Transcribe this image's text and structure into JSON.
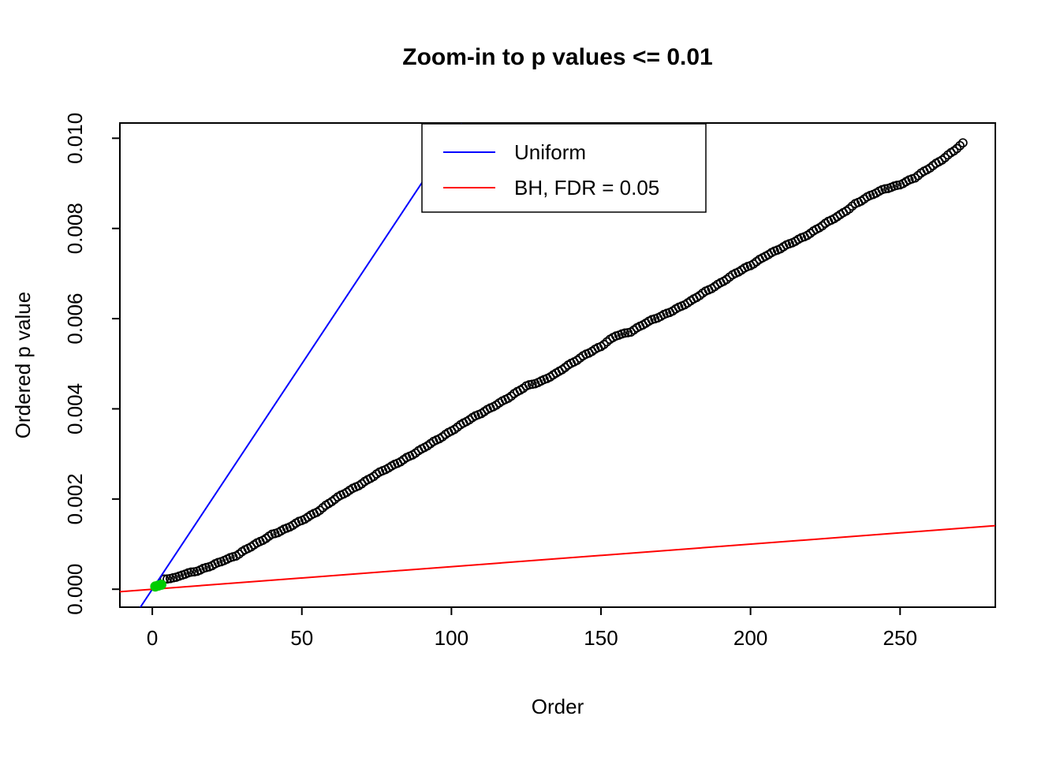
{
  "page": {
    "background": "#ffffff"
  },
  "chart_data": {
    "type": "scatter",
    "title": "Zoom-in to p values <= 0.01",
    "xlabel": "Order",
    "ylabel": "Ordered p value",
    "x_ticks": [
      0,
      50,
      100,
      150,
      200,
      250
    ],
    "y_ticks": [
      0.0,
      0.002,
      0.004,
      0.006,
      0.008,
      0.01
    ],
    "y_tick_labels": [
      "0.000",
      "0.002",
      "0.004",
      "0.006",
      "0.008",
      "0.010"
    ],
    "axes": {
      "usr_x": [
        -10.84,
        281.84
      ],
      "usr_y": [
        -0.000398,
        0.010338
      ],
      "xlim": [
        0,
        271
      ],
      "ylim": [
        0,
        0.00994
      ],
      "grid": false
    },
    "legend": {
      "position": "top-center",
      "entries": [
        {
          "label": "Uniform",
          "color": "#0000FF",
          "type": "line"
        },
        {
          "label": "BH, FDR = 0.05",
          "color": "#FF0000",
          "type": "line"
        }
      ]
    },
    "lines": [
      {
        "name": "uniform-line",
        "slope": 0.0001,
        "intercept": 0,
        "color": "#0000FF"
      },
      {
        "name": "bh-threshold-line",
        "slope": 5e-06,
        "intercept": 0,
        "color": "#FF0000"
      }
    ],
    "scatter": {
      "marker": "open-circle",
      "color": "#000000",
      "start_order": 4,
      "n": 271,
      "anchors_order_pvalue": [
        [
          4,
          0.00021
        ],
        [
          6,
          0.00024
        ],
        [
          8,
          0.00026
        ],
        [
          10,
          0.00033
        ],
        [
          13,
          0.00038
        ],
        [
          16,
          0.00042
        ],
        [
          20,
          0.00052
        ],
        [
          24,
          0.00065
        ],
        [
          28,
          0.00075
        ],
        [
          32,
          0.0009
        ],
        [
          36,
          0.00105
        ],
        [
          40,
          0.00122
        ],
        [
          45,
          0.00135
        ],
        [
          50,
          0.00152
        ],
        [
          55,
          0.00172
        ],
        [
          60,
          0.00195
        ],
        [
          65,
          0.00215
        ],
        [
          70,
          0.00235
        ],
        [
          75,
          0.00255
        ],
        [
          80,
          0.00272
        ],
        [
          85,
          0.00292
        ],
        [
          90,
          0.0031
        ],
        [
          95,
          0.0033
        ],
        [
          100,
          0.00352
        ],
        [
          105,
          0.00372
        ],
        [
          110,
          0.0039
        ],
        [
          115,
          0.0041
        ],
        [
          120,
          0.00428
        ],
        [
          125,
          0.0045
        ],
        [
          130,
          0.00462
        ],
        [
          135,
          0.00478
        ],
        [
          140,
          0.005
        ],
        [
          145,
          0.00522
        ],
        [
          150,
          0.00538
        ],
        [
          155,
          0.00562
        ],
        [
          160,
          0.00572
        ],
        [
          165,
          0.0059
        ],
        [
          170,
          0.00605
        ],
        [
          175,
          0.00622
        ],
        [
          180,
          0.00638
        ],
        [
          185,
          0.0066
        ],
        [
          190,
          0.0068
        ],
        [
          195,
          0.007
        ],
        [
          200,
          0.00718
        ],
        [
          205,
          0.0074
        ],
        [
          210,
          0.00755
        ],
        [
          215,
          0.00772
        ],
        [
          220,
          0.0079
        ],
        [
          225,
          0.0081
        ],
        [
          230,
          0.0083
        ],
        [
          235,
          0.00855
        ],
        [
          240,
          0.00872
        ],
        [
          245,
          0.00888
        ],
        [
          250,
          0.00898
        ],
        [
          255,
          0.00912
        ],
        [
          260,
          0.00935
        ],
        [
          265,
          0.00958
        ],
        [
          268,
          0.00972
        ],
        [
          271,
          0.00988
        ]
      ]
    },
    "significant_points": {
      "color": "#00CD00",
      "marker": "filled-circle",
      "points": [
        [
          1,
          6e-05
        ],
        [
          2,
          8e-05
        ],
        [
          3,
          0.0001
        ]
      ]
    }
  }
}
